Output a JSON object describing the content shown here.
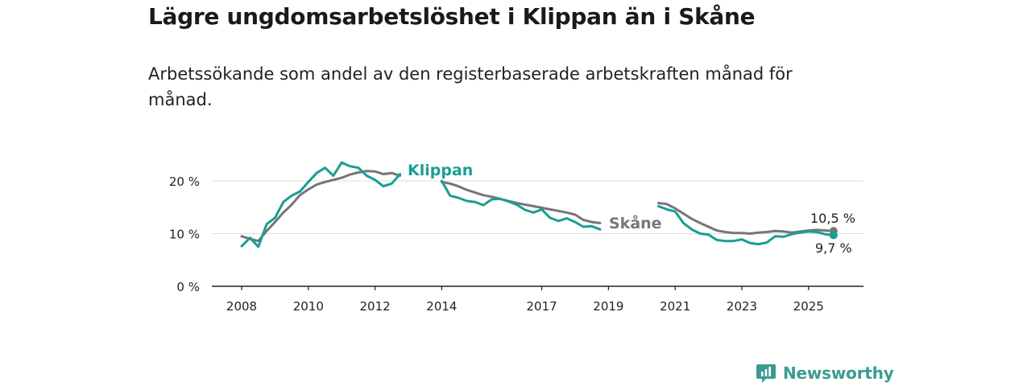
{
  "title": "Lägre ungdomsarbetslöshet i Klippan än i Skåne",
  "subtitle": "Arbetssökande som andel av den registerbaserade arbetskraften månad för månad.",
  "brand": {
    "name": "Newsworthy",
    "icon": "newsworthy-logo-icon",
    "color": "#3a9c91"
  },
  "chart_data": {
    "type": "line",
    "ylim": [
      0,
      25
    ],
    "xlim": [
      2007.5,
      2026.5
    ],
    "y_ticks": [
      {
        "value": 0,
        "label": "0 %"
      },
      {
        "value": 10,
        "label": "10 %"
      },
      {
        "value": 20,
        "label": "20 %"
      }
    ],
    "x_ticks": [
      {
        "value": 2008,
        "label": "2008"
      },
      {
        "value": 2010,
        "label": "2010"
      },
      {
        "value": 2012,
        "label": "2012"
      },
      {
        "value": 2014,
        "label": "2014"
      },
      {
        "value": 2017,
        "label": "2017"
      },
      {
        "value": 2019,
        "label": "2019"
      },
      {
        "value": 2021,
        "label": "2021"
      },
      {
        "value": 2023,
        "label": "2023"
      },
      {
        "value": 2025,
        "label": "2025"
      }
    ],
    "grid": "horizontal",
    "series": [
      {
        "name": "Skåne",
        "color": "#77747a",
        "label_position": "inline",
        "end_label": "10,5 %",
        "end_value": 10.5,
        "x": [
          2008.0,
          2008.25,
          2008.5,
          2008.75,
          2009.0,
          2009.25,
          2009.5,
          2009.75,
          2010.0,
          2010.25,
          2010.5,
          2010.75,
          2011.0,
          2011.25,
          2011.5,
          2011.75,
          2012.0,
          2012.25,
          2012.5,
          2012.75,
          2013.0,
          2013.25,
          2013.5,
          2013.75,
          2014.0,
          2014.25,
          2014.5,
          2014.75,
          2015.0,
          2015.25,
          2015.5,
          2015.75,
          2016.0,
          2016.25,
          2016.5,
          2016.75,
          2017.0,
          2017.25,
          2017.5,
          2017.75,
          2018.0,
          2018.25,
          2018.5,
          2018.75,
          2019.0,
          2019.25,
          2019.5,
          2019.75,
          2020.0,
          2020.25,
          2020.5,
          2020.75,
          2021.0,
          2021.25,
          2021.5,
          2021.75,
          2022.0,
          2022.25,
          2022.5,
          2022.75,
          2023.0,
          2023.25,
          2023.5,
          2023.75,
          2024.0,
          2024.25,
          2024.5,
          2024.75,
          2025.0,
          2025.25,
          2025.5,
          2025.75
        ],
        "values": [
          9.5,
          9.0,
          8.6,
          10.5,
          12.2,
          14.0,
          15.5,
          17.3,
          18.4,
          19.3,
          19.8,
          20.2,
          20.6,
          21.2,
          21.6,
          21.9,
          21.8,
          21.3,
          21.5,
          21.0,
          null,
          null,
          20.5,
          null,
          19.8,
          19.5,
          19.0,
          18.3,
          17.8,
          17.3,
          17.0,
          16.6,
          16.2,
          15.8,
          15.5,
          15.2,
          14.9,
          14.6,
          14.3,
          14.0,
          13.6,
          12.6,
          12.2,
          12.0,
          null,
          null,
          null,
          11.1,
          null,
          null,
          15.8,
          15.6,
          14.8,
          13.8,
          12.8,
          12.0,
          11.3,
          10.6,
          10.3,
          10.1,
          10.1,
          10.0,
          10.2,
          10.3,
          10.5,
          10.4,
          10.2,
          10.4,
          10.6,
          10.7,
          10.6,
          10.5
        ]
      },
      {
        "name": "Klippan",
        "color": "#1a9e93",
        "label_position": "inline",
        "end_label": "9,7 %",
        "end_value": 9.7,
        "x": [
          2008.0,
          2008.25,
          2008.5,
          2008.75,
          2009.0,
          2009.25,
          2009.5,
          2009.75,
          2010.0,
          2010.25,
          2010.5,
          2010.75,
          2011.0,
          2011.25,
          2011.5,
          2011.75,
          2012.0,
          2012.25,
          2012.5,
          2012.75,
          2013.0,
          2013.25,
          2013.5,
          2013.75,
          2014.0,
          2014.25,
          2014.5,
          2014.75,
          2015.0,
          2015.25,
          2015.5,
          2015.75,
          2016.0,
          2016.25,
          2016.5,
          2016.75,
          2017.0,
          2017.25,
          2017.5,
          2017.75,
          2018.0,
          2018.25,
          2018.5,
          2018.75,
          2019.0,
          2019.25,
          2019.5,
          2019.75,
          2020.0,
          2020.25,
          2020.5,
          2020.75,
          2021.0,
          2021.25,
          2021.5,
          2021.75,
          2022.0,
          2022.25,
          2022.5,
          2022.75,
          2023.0,
          2023.25,
          2023.5,
          2023.75,
          2024.0,
          2024.25,
          2024.5,
          2024.75,
          2025.0,
          2025.25,
          2025.5,
          2025.75
        ],
        "values": [
          7.6,
          9.2,
          7.5,
          11.8,
          13.0,
          16.0,
          17.2,
          18.0,
          19.8,
          21.5,
          22.5,
          21.0,
          23.5,
          22.8,
          22.5,
          21.0,
          20.2,
          19.0,
          19.5,
          21.3,
          null,
          null,
          20.0,
          null,
          20.0,
          17.2,
          16.8,
          16.2,
          16.0,
          15.4,
          16.5,
          16.6,
          16.1,
          15.5,
          14.5,
          14.0,
          14.6,
          13.0,
          12.4,
          12.9,
          12.2,
          11.3,
          11.4,
          10.8,
          null,
          null,
          null,
          11.0,
          null,
          null,
          15.2,
          14.6,
          14.2,
          12.0,
          10.8,
          10.0,
          9.8,
          8.8,
          8.6,
          8.6,
          8.9,
          8.2,
          8.0,
          8.3,
          9.5,
          9.4,
          9.9,
          10.2,
          10.4,
          10.3,
          9.9,
          9.7
        ]
      }
    ]
  }
}
